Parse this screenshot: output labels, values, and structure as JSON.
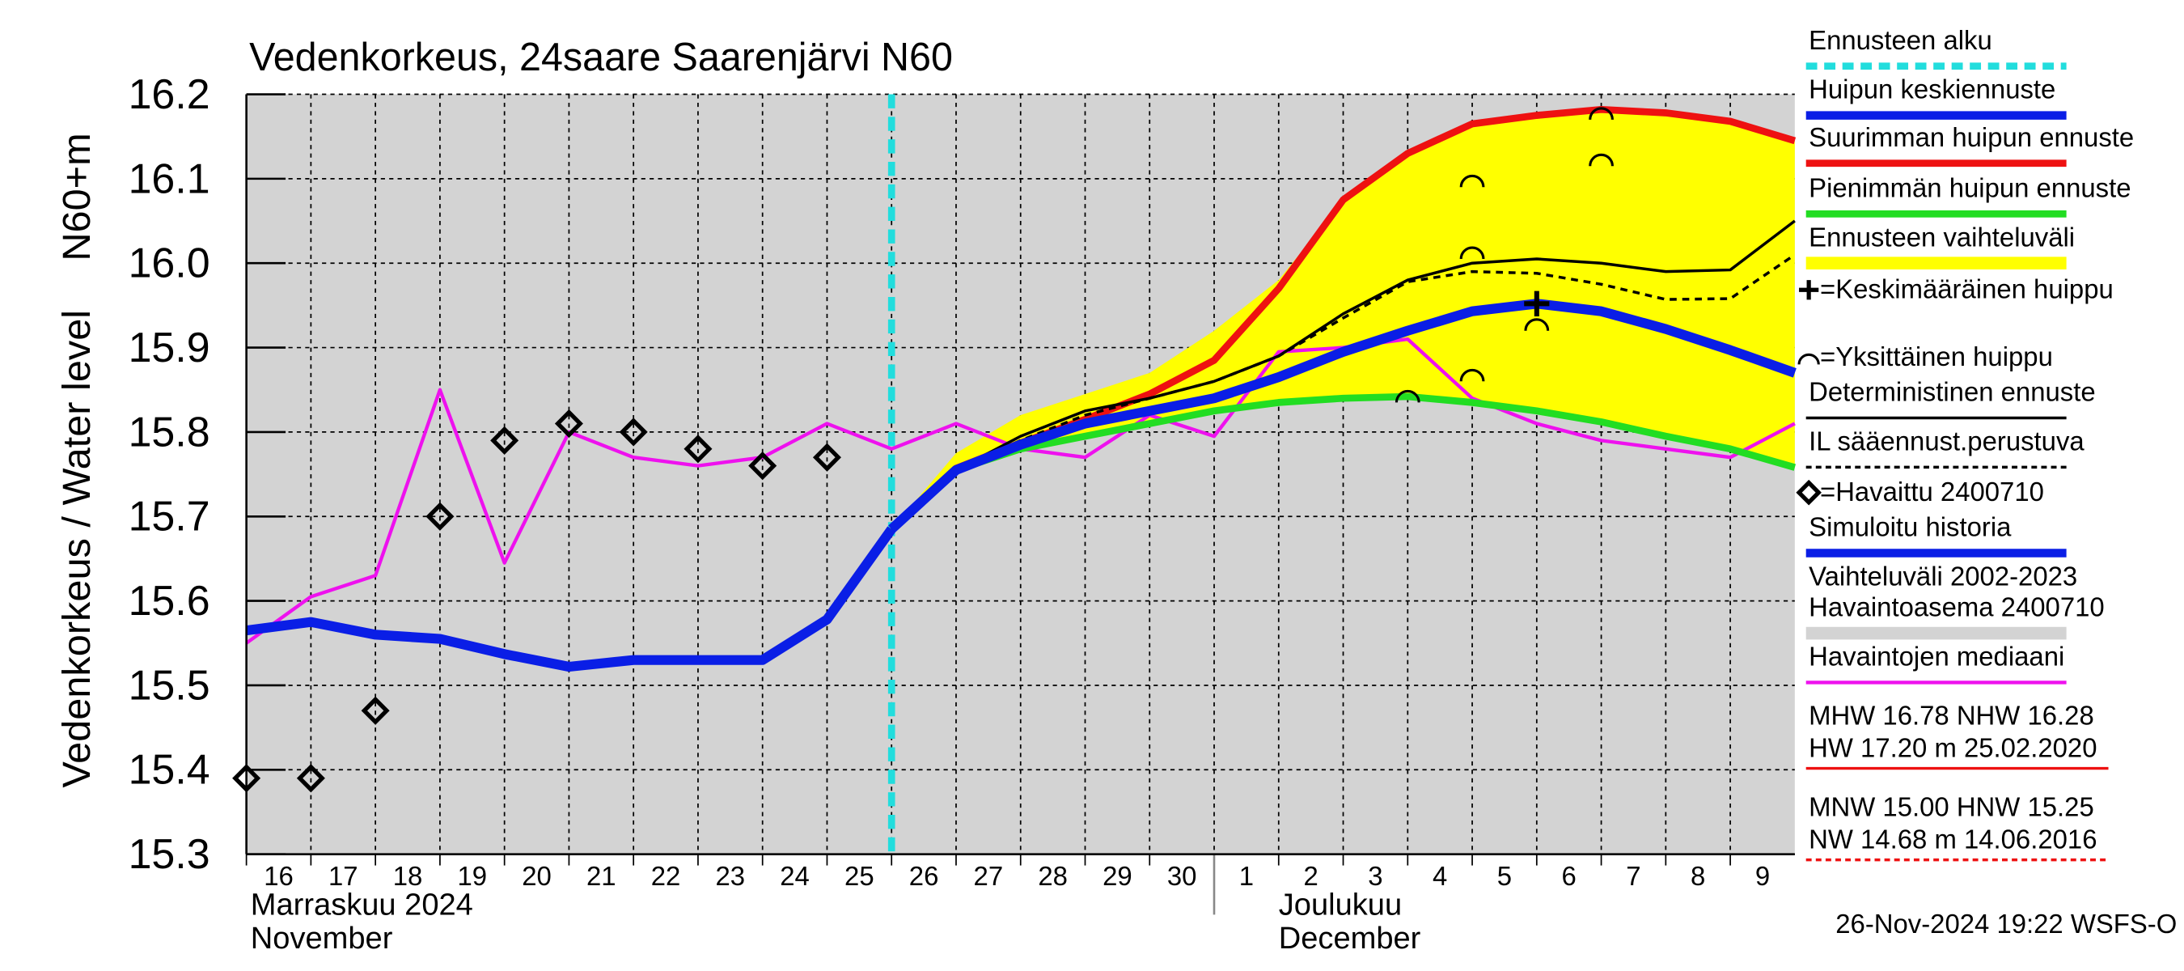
{
  "chart_data": {
    "type": "line",
    "title": "Vedenkorkeus, 24saare Saarenjärvi N60",
    "y_label": "Vedenkorkeus / Water level",
    "y_unit_label": "N60+m",
    "xlim": [
      "2024-11-16",
      "2024-12-10"
    ],
    "ylim": [
      15.3,
      16.2
    ],
    "yticks": [
      15.3,
      15.4,
      15.5,
      15.6,
      15.7,
      15.8,
      15.9,
      {
        "value": 16,
        "label": "16.0"
      },
      16.1,
      16.2
    ],
    "xticks": [
      {
        "value": "2024-11-16",
        "label": "16"
      },
      {
        "value": "2024-11-17",
        "label": "17"
      },
      {
        "value": "2024-11-18",
        "label": "18"
      },
      {
        "value": "2024-11-19",
        "label": "19"
      },
      {
        "value": "2024-11-20",
        "label": "20"
      },
      {
        "value": "2024-11-21",
        "label": "21"
      },
      {
        "value": "2024-11-22",
        "label": "22"
      },
      {
        "value": "2024-11-23",
        "label": "23"
      },
      {
        "value": "2024-11-24",
        "label": "24"
      },
      {
        "value": "2024-11-25",
        "label": "25"
      },
      {
        "value": "2024-11-26",
        "label": "26"
      },
      {
        "value": "2024-11-27",
        "label": "27"
      },
      {
        "value": "2024-11-28",
        "label": "28"
      },
      {
        "value": "2024-11-29",
        "label": "29"
      },
      {
        "value": "2024-11-30",
        "label": "30"
      },
      {
        "value": "2024-12-01",
        "label": "1"
      },
      {
        "value": "2024-12-02",
        "label": "2"
      },
      {
        "value": "2024-12-03",
        "label": "3"
      },
      {
        "value": "2024-12-04",
        "label": "4"
      },
      {
        "value": "2024-12-05",
        "label": "5"
      },
      {
        "value": "2024-12-06",
        "label": "6"
      },
      {
        "value": "2024-12-07",
        "label": "7"
      },
      {
        "value": "2024-12-08",
        "label": "8"
      },
      {
        "value": "2024-12-09",
        "label": "9"
      }
    ],
    "month_labels": [
      {
        "value": "2024-11-16",
        "lines": [
          "Marraskuu 2024",
          "November"
        ]
      },
      {
        "value": "2024-12-01",
        "lines": [
          "Joulukuu",
          "December"
        ]
      }
    ],
    "grid": true,
    "x": [
      "2024-11-16",
      "2024-11-17",
      "2024-11-18",
      "2024-11-19",
      "2024-11-20",
      "2024-11-21",
      "2024-11-22",
      "2024-11-23",
      "2024-11-24",
      "2024-11-25",
      "2024-11-26",
      "2024-11-27",
      "2024-11-28",
      "2024-11-29",
      "2024-11-30",
      "2024-12-01",
      "2024-12-02",
      "2024-12-03",
      "2024-12-04",
      "2024-12-05",
      "2024-12-06",
      "2024-12-07",
      "2024-12-08",
      "2024-12-09",
      "2024-12-10"
    ],
    "series": [
      {
        "name": "Ennusteen alku",
        "kind": "vline",
        "color": "#22dddd",
        "x": "2024-11-26"
      },
      {
        "name": "Huipun keskiennuste",
        "kind": "line",
        "color": "#0a1ee6",
        "width": 7,
        "values": [
          null,
          null,
          null,
          null,
          null,
          null,
          null,
          null,
          null,
          null,
          15.685,
          15.755,
          15.785,
          15.81,
          15.825,
          15.84,
          15.865,
          15.895,
          15.92,
          15.943,
          15.952,
          15.943,
          15.922,
          15.897,
          15.87
        ]
      },
      {
        "name": "Suurimman huipun ennuste",
        "kind": "line",
        "color": "#ee1111",
        "width": 5,
        "values": [
          null,
          null,
          null,
          null,
          null,
          null,
          null,
          null,
          null,
          null,
          15.685,
          15.757,
          15.787,
          15.815,
          15.845,
          15.885,
          15.97,
          16.075,
          16.13,
          16.165,
          16.175,
          16.182,
          16.178,
          16.168,
          16.145
        ]
      },
      {
        "name": "Pienimmän huipun ennuste",
        "kind": "line",
        "color": "#22dd22",
        "width": 5,
        "values": [
          null,
          null,
          null,
          null,
          null,
          null,
          null,
          null,
          null,
          null,
          15.685,
          15.755,
          15.78,
          15.795,
          15.81,
          15.825,
          15.835,
          15.84,
          15.842,
          15.835,
          15.825,
          15.812,
          15.795,
          15.78,
          15.758
        ]
      },
      {
        "name": "Ennusteen vaihteluväli",
        "kind": "band",
        "color": "#ffff00",
        "values": [
          null,
          null,
          null,
          null,
          null,
          null,
          null,
          null,
          null,
          null,
          15.685,
          15.775,
          15.82,
          15.845,
          15.87,
          15.92,
          15.98,
          16.075,
          16.13,
          16.165,
          16.175,
          16.182,
          16.178,
          16.168,
          16.145
        ],
        "lower": [
          null,
          null,
          null,
          null,
          null,
          null,
          null,
          null,
          null,
          null,
          15.685,
          15.755,
          15.78,
          15.795,
          15.81,
          15.825,
          15.835,
          15.84,
          15.842,
          15.835,
          15.825,
          15.812,
          15.795,
          15.78,
          15.758
        ]
      },
      {
        "name": "=Keskimääräinen huippu",
        "kind": "plus",
        "color": "#000000",
        "x": [
          "2024-12-06"
        ],
        "values": [
          15.952
        ]
      },
      {
        "name": "=Yksittäinen huippu",
        "kind": "arc",
        "color": "#000000",
        "x": [
          "2024-12-04",
          "2024-12-05",
          "2024-12-05",
          "2024-12-05",
          "2024-12-06",
          "2024-12-07",
          "2024-12-07"
        ],
        "values": [
          15.845,
          16.1,
          16.015,
          15.87,
          15.93,
          16.18,
          16.125
        ]
      },
      {
        "name": "Deterministinen ennuste",
        "kind": "line",
        "color": "#000000",
        "width": 2,
        "values": [
          null,
          null,
          null,
          null,
          null,
          null,
          null,
          null,
          null,
          null,
          15.685,
          15.755,
          15.795,
          15.825,
          15.84,
          15.86,
          15.89,
          15.94,
          15.98,
          16.0,
          16.005,
          16.0,
          15.99,
          15.992,
          16.05
        ]
      },
      {
        "name": "IL sääennust.perustuva",
        "kind": "line",
        "color": "#000000",
        "width": 2,
        "dashed": true,
        "values": [
          null,
          null,
          null,
          null,
          null,
          null,
          null,
          null,
          null,
          null,
          15.685,
          15.755,
          15.79,
          15.82,
          15.84,
          15.86,
          15.89,
          15.935,
          15.978,
          15.99,
          15.988,
          15.975,
          15.957,
          15.958,
          16.01
        ]
      },
      {
        "name": "=Havaittu 2400710",
        "kind": "diamond",
        "color": "#000000",
        "x": [
          "2024-11-16",
          "2024-11-17",
          "2024-11-18",
          "2024-11-19",
          "2024-11-20",
          "2024-11-21",
          "2024-11-22",
          "2024-11-23",
          "2024-11-24",
          "2024-11-25"
        ],
        "values": [
          15.39,
          15.39,
          15.47,
          15.7,
          15.79,
          15.81,
          15.8,
          15.78,
          15.76,
          15.77
        ]
      },
      {
        "name": "Simuloitu historia",
        "kind": "line",
        "color": "#0a1ee6",
        "width": 7,
        "values": [
          15.565,
          15.575,
          15.56,
          15.555,
          15.537,
          15.522,
          15.53,
          15.53,
          15.53,
          15.578,
          15.685,
          null,
          null,
          null,
          null,
          null,
          null,
          null,
          null,
          null,
          null,
          null,
          null,
          null,
          null
        ]
      },
      {
        "name_lines": [
          "Vaihteluväli 2002-2023",
          " Havaintoasema 2400710"
        ],
        "kind": "legend-only",
        "color": "#d3d3d3"
      },
      {
        "name": "Havaintojen mediaani",
        "kind": "line",
        "color": "#ee11ee",
        "width": 2.5,
        "values": [
          15.55,
          15.605,
          15.63,
          15.85,
          15.645,
          15.8,
          15.77,
          15.76,
          15.77,
          15.81,
          15.78,
          15.81,
          15.78,
          15.77,
          15.82,
          15.795,
          15.895,
          15.9,
          15.91,
          15.84,
          15.81,
          15.79,
          15.78,
          15.77,
          15.81
        ]
      }
    ],
    "stats": [
      {
        "lines": [
          "MHW  16.78 NHW  16.28",
          "HW  17.20 m 25.02.2020"
        ],
        "color": "#ee1111"
      },
      {
        "lines": [
          "MNW  15.00 HNW  15.25",
          "NW  14.68 m 14.06.2016"
        ],
        "color": "#ee1111"
      }
    ],
    "footer": "26-Nov-2024 19:22 WSFS-O"
  }
}
